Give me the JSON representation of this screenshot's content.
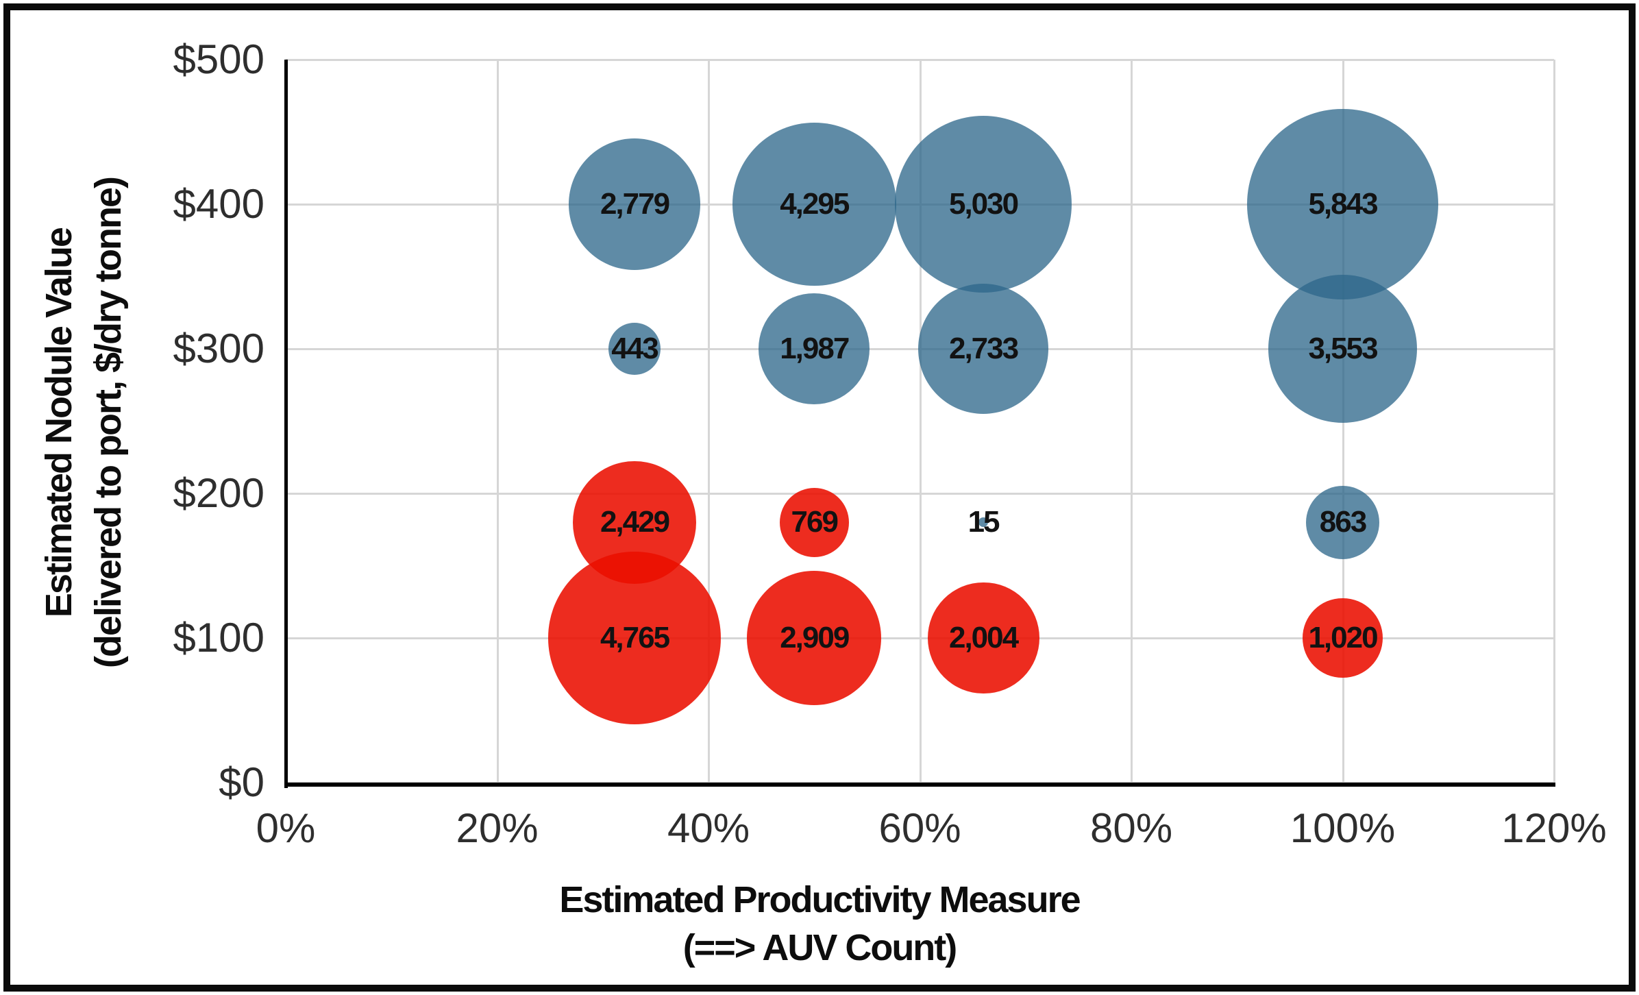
{
  "chart_data": {
    "type": "bubble",
    "title": "",
    "xlabel_line1": "Estimated Productivity Measure",
    "xlabel_line2": "(==> AUV Count)",
    "ylabel_line1": "Estimated Nodule Value",
    "ylabel_line2": "(delivered to port, $/dry tonne)",
    "xlim": [
      0,
      120
    ],
    "ylim": [
      0,
      500
    ],
    "grid": "on",
    "legend": "none",
    "x_ticks": [
      {
        "label": "0%",
        "value": 0
      },
      {
        "label": "20%",
        "value": 20
      },
      {
        "label": "40%",
        "value": 40
      },
      {
        "label": "60%",
        "value": 60
      },
      {
        "label": "80%",
        "value": 80
      },
      {
        "label": "100%",
        "value": 100
      },
      {
        "label": "120%",
        "value": 120
      }
    ],
    "y_ticks": [
      {
        "label": "$0",
        "value": 0
      },
      {
        "label": "$100",
        "value": 100
      },
      {
        "label": "$200",
        "value": 200
      },
      {
        "label": "$300",
        "value": 300
      },
      {
        "label": "$400",
        "value": 400
      },
      {
        "label": "$500",
        "value": 500
      }
    ],
    "series": [
      {
        "name": "blue",
        "fill": "rgba(45,102,138,0.76)",
        "solid_hex": "#5f8ba6",
        "points": [
          {
            "x": 33,
            "y": 400,
            "size": 2779,
            "label": "2,779"
          },
          {
            "x": 50,
            "y": 400,
            "size": 4295,
            "label": "4,295"
          },
          {
            "x": 66,
            "y": 400,
            "size": 5030,
            "label": "5,030"
          },
          {
            "x": 100,
            "y": 400,
            "size": 5843,
            "label": "5,843"
          },
          {
            "x": 33,
            "y": 300,
            "size": 443,
            "label": "443"
          },
          {
            "x": 50,
            "y": 300,
            "size": 1987,
            "label": "1,987"
          },
          {
            "x": 66,
            "y": 300,
            "size": 2733,
            "label": "2,733"
          },
          {
            "x": 100,
            "y": 300,
            "size": 3553,
            "label": "3,553"
          },
          {
            "x": 66,
            "y": 180,
            "size": 15,
            "label": "15"
          },
          {
            "x": 100,
            "y": 180,
            "size": 863,
            "label": "863"
          }
        ]
      },
      {
        "name": "red",
        "fill": "rgba(235,15,0,0.88)",
        "solid_hex": "#ed2c1f",
        "points": [
          {
            "x": 33,
            "y": 180,
            "size": 2429,
            "label": "2,429"
          },
          {
            "x": 50,
            "y": 180,
            "size": 769,
            "label": "769"
          },
          {
            "x": 33,
            "y": 100,
            "size": 4765,
            "label": "4,765"
          },
          {
            "x": 50,
            "y": 100,
            "size": 2909,
            "label": "2,909"
          },
          {
            "x": 66,
            "y": 100,
            "size": 2004,
            "label": "2,004"
          },
          {
            "x": 100,
            "y": 100,
            "size": 1020,
            "label": "1,020"
          }
        ]
      }
    ],
    "colors": {
      "gridline": "#d6d6d6",
      "axis": "#000000",
      "tick_text": "#2e2e2e",
      "label_text": "#121212",
      "border": "#0b0b0b",
      "background": "#ffffff"
    }
  }
}
